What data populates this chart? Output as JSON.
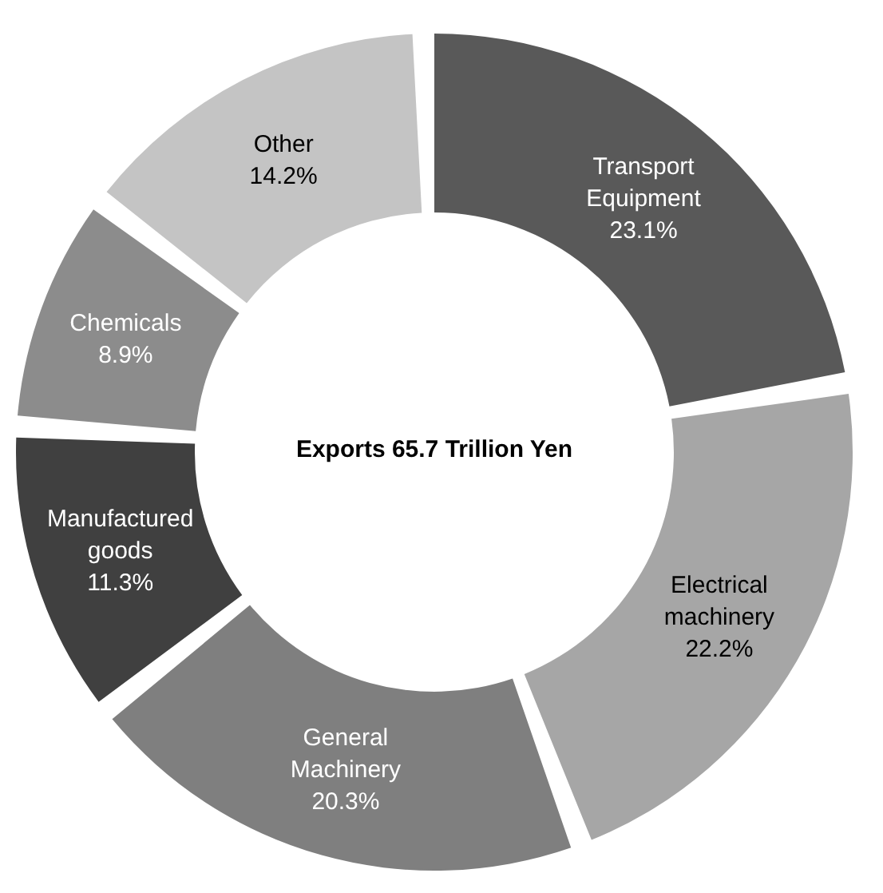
{
  "chart_data": {
    "type": "donut",
    "title": "Exports 65.7 Trillion Yen",
    "categories": [
      "Transport Equipment",
      "Electrical machinery",
      "General Machinery",
      "Manufactured goods",
      "Chemicals",
      "Other"
    ],
    "values": [
      23.1,
      22.2,
      20.3,
      11.3,
      8.9,
      14.2
    ],
    "colors": [
      "#595959",
      "#a6a6a6",
      "#7f7f7f",
      "#404040",
      "#8c8c8c",
      "#c4c4c4"
    ],
    "value_labels": [
      "23.1%",
      "22.2%",
      "20.3%",
      "11.3%",
      "8.9%",
      "14.2%"
    ],
    "legend": false
  }
}
